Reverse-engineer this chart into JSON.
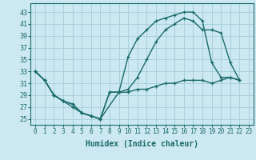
{
  "xlabel": "Humidex (Indice chaleur)",
  "bg_color": "#cce8f0",
  "grid_color": "#a8d0dc",
  "line_color": "#1a6b6b",
  "xlim": [
    -0.5,
    23.5
  ],
  "ylim": [
    24,
    44.5
  ],
  "xticks": [
    0,
    1,
    2,
    3,
    4,
    5,
    6,
    7,
    8,
    9,
    10,
    11,
    12,
    13,
    14,
    15,
    16,
    17,
    18,
    19,
    20,
    21,
    22,
    23
  ],
  "yticks": [
    25,
    27,
    29,
    31,
    33,
    35,
    37,
    39,
    41,
    43
  ],
  "x_top": [
    0,
    1,
    2,
    3,
    4,
    5,
    6,
    7,
    8,
    9,
    10,
    11,
    12,
    13,
    14,
    15,
    16,
    17,
    18,
    19,
    20,
    21,
    22
  ],
  "y_top": [
    33,
    31.5,
    29,
    28,
    27.5,
    26,
    25.5,
    25,
    29.5,
    29.5,
    35.5,
    38.5,
    40,
    41.5,
    42,
    42.5,
    43,
    43,
    41.5,
    34.5,
    32,
    32,
    31.5
  ],
  "x_mid": [
    0,
    1,
    2,
    3,
    4,
    5,
    6,
    7,
    9,
    10,
    11,
    12,
    13,
    14,
    15,
    16,
    17,
    18,
    19,
    20,
    21,
    22
  ],
  "y_mid": [
    33,
    31.5,
    29,
    28,
    27,
    26,
    25.5,
    25,
    29.5,
    30,
    32,
    35,
    38,
    40,
    41,
    42,
    41.5,
    40,
    40,
    39.5,
    34.5,
    31.5
  ],
  "x_bot": [
    0,
    1,
    2,
    3,
    4,
    5,
    6,
    7,
    8,
    9,
    10,
    11,
    12,
    13,
    14,
    15,
    16,
    17,
    18,
    19,
    20,
    21,
    22
  ],
  "y_bot": [
    33,
    31.5,
    29,
    28,
    27.5,
    26,
    25.5,
    25,
    29.5,
    29.5,
    29.5,
    30,
    30,
    30.5,
    31,
    31,
    31.5,
    31.5,
    31.5,
    31,
    31.5,
    32,
    31.5
  ],
  "xlabel_fontsize": 7,
  "tick_fontsize": 5.5,
  "linewidth": 1.0,
  "marker_size": 3.5
}
